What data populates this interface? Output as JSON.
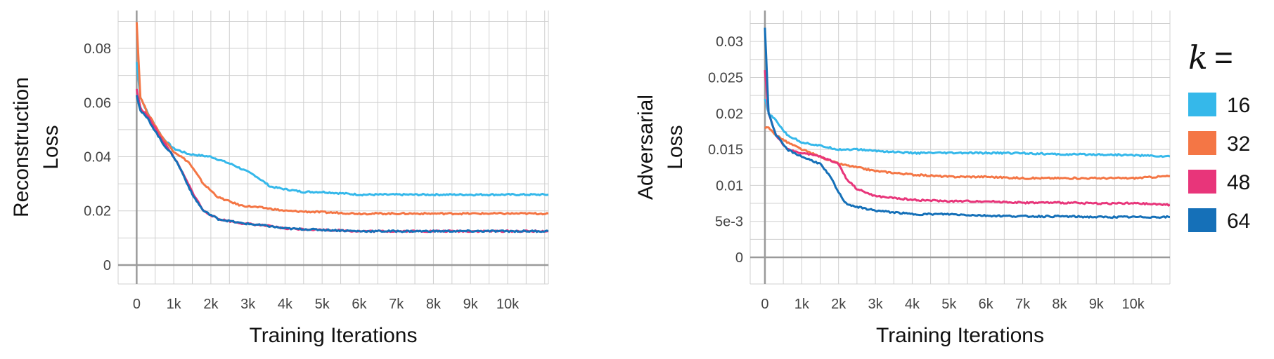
{
  "colors": {
    "k16": "#35b8ea",
    "k32": "#f47645",
    "k48": "#e8357a",
    "k64": "#1570b8",
    "grid": "#d0d0d0",
    "axis": "#9a9a9a"
  },
  "legend": {
    "title_var": "k",
    "title_eq": "=",
    "entries": [
      {
        "label": "16",
        "color": "#35b8ea"
      },
      {
        "label": "32",
        "color": "#f47645"
      },
      {
        "label": "48",
        "color": "#e8357a"
      },
      {
        "label": "64",
        "color": "#1570b8"
      }
    ],
    "placement": "right"
  },
  "chart_data": [
    {
      "type": "line",
      "xlabel": "Training Iterations",
      "ylabel": [
        "Reconstruction",
        "Loss"
      ],
      "xlim": [
        -500,
        11100
      ],
      "ylim": [
        -0.007,
        0.094
      ],
      "xticks": [
        0,
        1000,
        2000,
        3000,
        4000,
        5000,
        6000,
        7000,
        8000,
        9000,
        10000
      ],
      "xtick_labels": [
        "0",
        "1k",
        "2k",
        "3k",
        "4k",
        "5k",
        "6k",
        "7k",
        "8k",
        "9k",
        "10k"
      ],
      "yticks": [
        0,
        0.02,
        0.04,
        0.06,
        0.08
      ],
      "ytick_labels": [
        "0",
        "0.02",
        "0.04",
        "0.06",
        "0.08"
      ],
      "grid": true,
      "series": [
        {
          "name": "16",
          "x": [
            0,
            100,
            300,
            700,
            1000,
            1400,
            2000,
            2600,
            3200,
            3600,
            4000,
            4500,
            5000,
            6000,
            7000,
            8000,
            9000,
            10000,
            11100
          ],
          "y": [
            0.075,
            0.062,
            0.056,
            0.047,
            0.043,
            0.041,
            0.04,
            0.037,
            0.033,
            0.029,
            0.028,
            0.027,
            0.027,
            0.026,
            0.026,
            0.026,
            0.026,
            0.026,
            0.026
          ]
        },
        {
          "name": "32",
          "x": [
            0,
            100,
            300,
            700,
            1000,
            1400,
            1800,
            2200,
            2800,
            3500,
            4000,
            5000,
            6000,
            7000,
            8000,
            9000,
            10000,
            11100
          ],
          "y": [
            0.09,
            0.062,
            0.056,
            0.047,
            0.042,
            0.038,
            0.03,
            0.025,
            0.022,
            0.021,
            0.02,
            0.0195,
            0.019,
            0.019,
            0.019,
            0.019,
            0.019,
            0.019
          ]
        },
        {
          "name": "48",
          "x": [
            0,
            100,
            300,
            700,
            1000,
            1200,
            1500,
            1800,
            2200,
            2800,
            3500,
            4000,
            5000,
            6000,
            7000,
            8000,
            9000,
            10000,
            11100
          ],
          "y": [
            0.065,
            0.058,
            0.055,
            0.046,
            0.04,
            0.035,
            0.027,
            0.02,
            0.017,
            0.0155,
            0.0145,
            0.0135,
            0.013,
            0.0125,
            0.0125,
            0.0125,
            0.0125,
            0.0125,
            0.0125
          ]
        },
        {
          "name": "64",
          "x": [
            0,
            100,
            300,
            700,
            1000,
            1200,
            1500,
            1800,
            2200,
            2800,
            3500,
            4000,
            5000,
            6000,
            7000,
            8000,
            9000,
            10000,
            11100
          ],
          "y": [
            0.063,
            0.057,
            0.054,
            0.045,
            0.04,
            0.035,
            0.026,
            0.02,
            0.017,
            0.0155,
            0.0145,
            0.0135,
            0.013,
            0.0125,
            0.0125,
            0.0125,
            0.0125,
            0.0125,
            0.0125
          ]
        }
      ]
    },
    {
      "type": "line",
      "xlabel": "Training Iterations",
      "ylabel": [
        "Adversarial",
        "Loss"
      ],
      "xlim": [
        -400,
        11000
      ],
      "ylim": [
        -0.0037,
        0.0343
      ],
      "xticks": [
        0,
        1000,
        2000,
        3000,
        4000,
        5000,
        6000,
        7000,
        8000,
        9000,
        10000
      ],
      "xtick_labels": [
        "0",
        "1k",
        "2k",
        "3k",
        "4k",
        "5k",
        "6k",
        "7k",
        "8k",
        "9k",
        "10k"
      ],
      "yticks": [
        0,
        0.005,
        0.01,
        0.015,
        0.02,
        0.025,
        0.03
      ],
      "ytick_labels": [
        "0",
        "5e-3",
        "0.01",
        "0.015",
        "0.02",
        "0.025",
        "0.03"
      ],
      "grid": true,
      "series": [
        {
          "name": "16",
          "x": [
            0,
            100,
            300,
            600,
            1000,
            1500,
            2000,
            2500,
            3000,
            4000,
            5000,
            6000,
            7000,
            8000,
            9000,
            10000,
            11000
          ],
          "y": [
            0.022,
            0.02,
            0.019,
            0.017,
            0.016,
            0.0155,
            0.015,
            0.015,
            0.0148,
            0.0145,
            0.0145,
            0.0145,
            0.0145,
            0.0143,
            0.0143,
            0.0142,
            0.014
          ]
        },
        {
          "name": "32",
          "x": [
            0,
            100,
            300,
            600,
            1000,
            1500,
            2000,
            2500,
            3000,
            4000,
            5000,
            6000,
            7000,
            8000,
            9000,
            10000,
            11000
          ],
          "y": [
            0.018,
            0.018,
            0.017,
            0.016,
            0.015,
            0.014,
            0.013,
            0.0125,
            0.012,
            0.0115,
            0.0112,
            0.0112,
            0.011,
            0.011,
            0.011,
            0.011,
            0.0113
          ]
        },
        {
          "name": "48",
          "x": [
            0,
            100,
            300,
            600,
            1000,
            1500,
            2000,
            2200,
            2500,
            3000,
            4000,
            5000,
            6000,
            7000,
            8000,
            9000,
            10000,
            11000
          ],
          "y": [
            0.026,
            0.02,
            0.017,
            0.015,
            0.0145,
            0.014,
            0.013,
            0.011,
            0.0095,
            0.0085,
            0.008,
            0.0078,
            0.0078,
            0.0076,
            0.0076,
            0.0075,
            0.0075,
            0.0073
          ]
        },
        {
          "name": "64",
          "x": [
            0,
            100,
            300,
            600,
            1000,
            1500,
            1800,
            2000,
            2200,
            2500,
            3000,
            4000,
            5000,
            6000,
            7000,
            8000,
            9000,
            10000,
            11000
          ],
          "y": [
            0.032,
            0.02,
            0.017,
            0.015,
            0.014,
            0.013,
            0.011,
            0.009,
            0.0075,
            0.007,
            0.0065,
            0.006,
            0.006,
            0.0058,
            0.0057,
            0.0057,
            0.0056,
            0.0056,
            0.0056
          ]
        }
      ]
    }
  ]
}
